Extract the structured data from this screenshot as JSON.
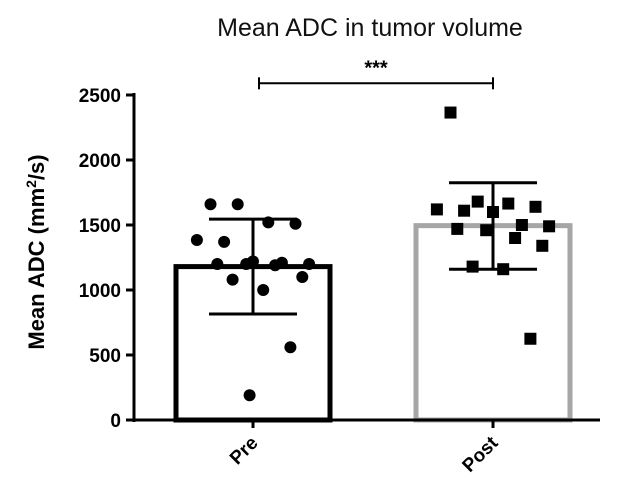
{
  "chart_data": {
    "type": "bar",
    "title": "Mean ADC in tumor volume",
    "ylabel_main": "Mean ADC  (mm",
    "ylabel_sup": "2",
    "ylabel_end": "/s)",
    "ylim": [
      0,
      2500
    ],
    "yticks": [
      0,
      500,
      1000,
      1500,
      2000,
      2500
    ],
    "ytick_labels": [
      "0",
      "500",
      "1000",
      "1500",
      "2000",
      "2500"
    ],
    "categories": [
      "Pre",
      "Post"
    ],
    "bar_colors": [
      "#000000",
      "#a6a6a6"
    ],
    "series": [
      {
        "category": "Pre",
        "mean": 1180,
        "error_low": 815,
        "error_high": 1545,
        "marker": "circle",
        "points": [
          1660,
          1660,
          1520,
          1510,
          1385,
          1370,
          1220,
          1210,
          1200,
          1200,
          1200,
          1190,
          1100,
          1080,
          1000,
          560,
          190
        ]
      },
      {
        "category": "Post",
        "mean": 1495,
        "error_low": 1160,
        "error_high": 1825,
        "marker": "square",
        "points": [
          2365,
          1680,
          1665,
          1640,
          1620,
          1610,
          1600,
          1500,
          1490,
          1470,
          1460,
          1400,
          1340,
          1180,
          1160,
          625
        ]
      }
    ],
    "significance": {
      "label": "***",
      "between": [
        "Pre",
        "Post"
      ],
      "y": 2590
    }
  }
}
